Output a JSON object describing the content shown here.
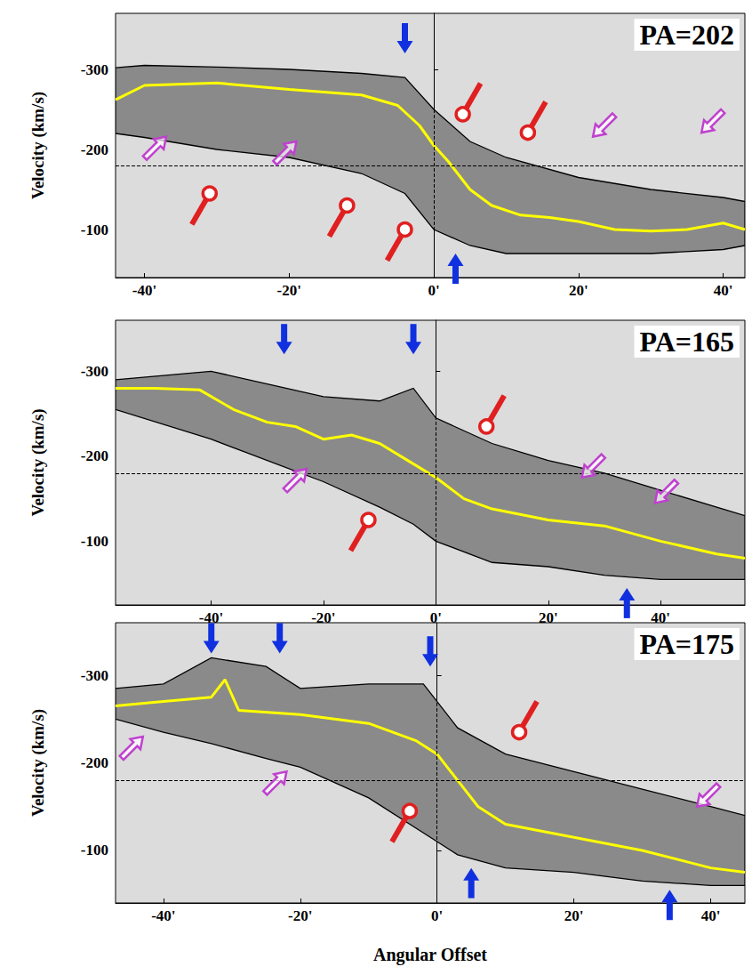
{
  "chart_data": [
    {
      "type": "line",
      "title": "PA=202",
      "ylabel": "Velocity (km/s)",
      "xlim": [
        -44,
        43
      ],
      "ylim": [
        -370,
        -40
      ],
      "xticks": [
        {
          "value": -40,
          "label": "-40'"
        },
        {
          "value": -20,
          "label": "-20'"
        },
        {
          "value": 0,
          "label": "0'"
        },
        {
          "value": 20,
          "label": "20'"
        },
        {
          "value": 40,
          "label": "40'"
        }
      ],
      "yticks": [
        -300,
        -200,
        -100
      ],
      "ref_lines": {
        "x": 0,
        "y": -180
      },
      "emission": {
        "x": [
          -44,
          -40,
          -30,
          -20,
          -10,
          -4,
          0,
          5,
          10,
          20,
          30,
          40,
          43
        ],
        "upper": [
          -302,
          -305,
          -303,
          -300,
          -295,
          -290,
          -250,
          -210,
          -190,
          -165,
          -150,
          -140,
          -135
        ],
        "lower": [
          -220,
          -215,
          -200,
          -190,
          -170,
          -145,
          -100,
          -80,
          -70,
          -70,
          -70,
          -75,
          -80
        ]
      },
      "x": [
        -44,
        -40,
        -30,
        -20,
        -10,
        -5,
        -2,
        0,
        2,
        5,
        8,
        12,
        16,
        20,
        25,
        30,
        35,
        40,
        43
      ],
      "series": [
        {
          "color": "#ffff00",
          "values": [
            -262,
            -280,
            -283,
            -275,
            -268,
            -255,
            -230,
            -205,
            -185,
            -150,
            -130,
            -118,
            -115,
            -110,
            -100,
            -98,
            -100,
            -108,
            -100
          ]
        }
      ],
      "arrows": [
        {
          "x": -4,
          "y": -320,
          "marker": "arrow_down",
          "color": "#1030e0"
        },
        {
          "x": 3,
          "y": -70,
          "marker": "arrow_up",
          "color": "#1030e0"
        },
        {
          "x": 4,
          "y": -244,
          "marker": "pin_up_right",
          "color": "#e02020"
        },
        {
          "x": 13,
          "y": -221,
          "marker": "pin_up_right",
          "color": "#e02020"
        },
        {
          "x": -31,
          "y": -145,
          "marker": "pin_down_left",
          "color": "#e02020"
        },
        {
          "x": -12,
          "y": -130,
          "marker": "pin_down_left",
          "color": "#e02020"
        },
        {
          "x": -4,
          "y": -100,
          "marker": "pin_down_left",
          "color": "#e02020"
        },
        {
          "x": -37,
          "y": -216,
          "marker": "arrow_up_right",
          "color": "#c040d0"
        },
        {
          "x": -19,
          "y": -210,
          "marker": "arrow_up_right",
          "color": "#c040d0"
        },
        {
          "x": 22,
          "y": -216,
          "marker": "arrow_down_left",
          "color": "#c040d0"
        },
        {
          "x": 37,
          "y": -221,
          "marker": "arrow_down_left",
          "color": "#c040d0"
        }
      ]
    },
    {
      "type": "line",
      "title": "PA=165",
      "ylabel": "Velocity (km/s)",
      "xlim": [
        -57,
        55
      ],
      "ylim": [
        -360,
        -25
      ],
      "xticks": [
        {
          "value": -40,
          "label": "-40'"
        },
        {
          "value": -20,
          "label": "-20'"
        },
        {
          "value": 0,
          "label": "0'"
        },
        {
          "value": 20,
          "label": "20'"
        },
        {
          "value": 40,
          "label": "40'"
        }
      ],
      "yticks": [
        -300,
        -200,
        -100
      ],
      "ref_lines": {
        "x": 0,
        "y": -180
      },
      "emission": {
        "x": [
          -57,
          -40,
          -30,
          -20,
          -10,
          -4,
          0,
          10,
          20,
          30,
          40,
          55
        ],
        "upper": [
          -290,
          -300,
          -285,
          -270,
          -265,
          -280,
          -245,
          -215,
          -195,
          -180,
          -160,
          -130
        ],
        "lower": [
          -255,
          -220,
          -195,
          -170,
          -140,
          -120,
          -100,
          -75,
          -70,
          -60,
          -55,
          -55
        ]
      },
      "x": [
        -57,
        -50,
        -42,
        -36,
        -30,
        -25,
        -20,
        -15,
        -10,
        -5,
        0,
        5,
        10,
        20,
        30,
        40,
        50,
        55
      ],
      "series": [
        {
          "color": "#ffff00",
          "values": [
            -280,
            -280,
            -278,
            -255,
            -240,
            -235,
            -220,
            -225,
            -215,
            -195,
            -175,
            -150,
            -138,
            -125,
            -118,
            -100,
            -85,
            -80
          ]
        }
      ],
      "arrows": [
        {
          "x": -27,
          "y": -320,
          "marker": "arrow_down",
          "color": "#1030e0"
        },
        {
          "x": -4,
          "y": -320,
          "marker": "arrow_down",
          "color": "#1030e0"
        },
        {
          "x": 34,
          "y": -45,
          "marker": "arrow_up",
          "color": "#1030e0"
        },
        {
          "x": 9,
          "y": -235,
          "marker": "pin_up_right",
          "color": "#e02020"
        },
        {
          "x": -12,
          "y": -125,
          "marker": "pin_down_left",
          "color": "#e02020"
        },
        {
          "x": -23,
          "y": -185,
          "marker": "arrow_up_right",
          "color": "#c040d0"
        },
        {
          "x": 26,
          "y": -175,
          "marker": "arrow_down_left",
          "color": "#c040d0"
        },
        {
          "x": 39,
          "y": -145,
          "marker": "arrow_down_left",
          "color": "#c040d0"
        }
      ]
    },
    {
      "type": "line",
      "title": "PA=175",
      "ylabel": "Velocity (km/s)",
      "xlabel": "Angular Offset",
      "xlim": [
        -47,
        45
      ],
      "ylim": [
        -360,
        -40
      ],
      "xticks": [
        {
          "value": -40,
          "label": "-40'"
        },
        {
          "value": -20,
          "label": "-20'"
        },
        {
          "value": 0,
          "label": "0'"
        },
        {
          "value": 20,
          "label": "20'"
        },
        {
          "value": 40,
          "label": "40'"
        }
      ],
      "yticks": [
        -300,
        -200,
        -100
      ],
      "ref_lines": {
        "x": 0,
        "y": -180
      },
      "emission": {
        "x": [
          -47,
          -40,
          -33,
          -25,
          -20,
          -10,
          -2,
          3,
          10,
          20,
          30,
          40,
          45
        ],
        "upper": [
          -285,
          -290,
          -320,
          -310,
          -285,
          -290,
          -290,
          -240,
          -210,
          -190,
          -170,
          -150,
          -140
        ],
        "lower": [
          -250,
          -235,
          -222,
          -205,
          -195,
          -160,
          -120,
          -95,
          -80,
          -75,
          -65,
          -60,
          -60
        ]
      },
      "x": [
        -47,
        -40,
        -33,
        -31,
        -29,
        -20,
        -10,
        -3,
        0,
        3,
        6,
        10,
        20,
        30,
        40,
        45
      ],
      "series": [
        {
          "color": "#ffff00",
          "values": [
            -265,
            -270,
            -275,
            -295,
            -260,
            -255,
            -245,
            -225,
            -210,
            -180,
            -150,
            -130,
            -115,
            -100,
            -80,
            -75
          ]
        }
      ],
      "arrows": [
        {
          "x": -33,
          "y": -325,
          "marker": "arrow_down",
          "color": "#1030e0"
        },
        {
          "x": -23,
          "y": -325,
          "marker": "arrow_down",
          "color": "#1030e0"
        },
        {
          "x": -1,
          "y": -310,
          "marker": "arrow_down",
          "color": "#1030e0"
        },
        {
          "x": 5,
          "y": -80,
          "marker": "arrow_up",
          "color": "#1030e0"
        },
        {
          "x": 34,
          "y": -55,
          "marker": "arrow_up",
          "color": "#1030e0"
        },
        {
          "x": 12,
          "y": -235,
          "marker": "pin_up_right",
          "color": "#e02020"
        },
        {
          "x": -4,
          "y": -145,
          "marker": "pin_down_left",
          "color": "#e02020"
        },
        {
          "x": -43,
          "y": -230,
          "marker": "arrow_up_right",
          "color": "#c040d0"
        },
        {
          "x": -22,
          "y": -190,
          "marker": "arrow_up_right",
          "color": "#c040d0"
        },
        {
          "x": 38,
          "y": -150,
          "marker": "arrow_down_left",
          "color": "#c040d0"
        }
      ]
    }
  ]
}
